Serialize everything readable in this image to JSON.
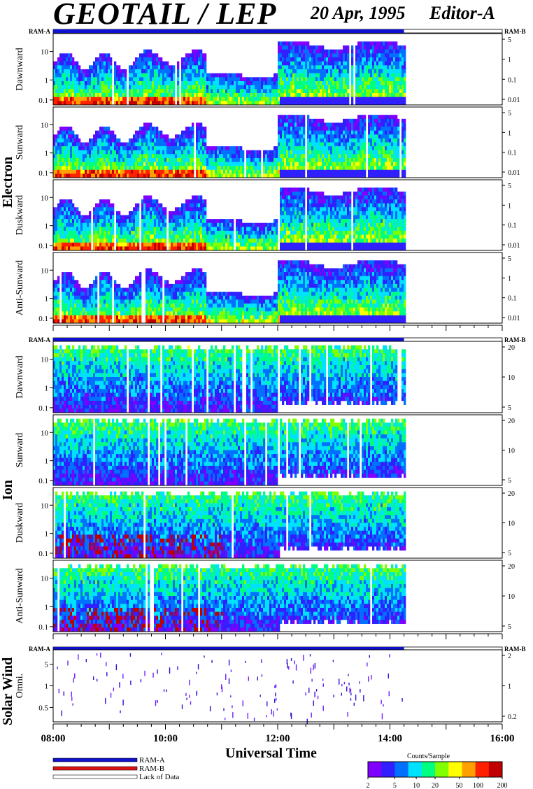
{
  "header": {
    "title": "GEOTAIL / LEP",
    "date": "20 Apr, 1995",
    "editor": "Editor-A"
  },
  "ram_labels": {
    "left": "RAM-A",
    "right": "RAM-B"
  },
  "colors": {
    "ram_a": "#1010d0",
    "ram_b": "#e01010",
    "lack": "#ffffff"
  },
  "chart_data": [
    {
      "type": "heatmap",
      "group": "Electron",
      "panel": "Dawnward",
      "y_left_ticks": [
        "10",
        "1",
        "0.1"
      ],
      "y_right_ticks": [
        "5",
        "1",
        "0.1",
        "0.01"
      ],
      "x": [
        "08:00",
        "16:00"
      ],
      "data_end": "14:15"
    },
    {
      "type": "heatmap",
      "group": "Electron",
      "panel": "Sunward",
      "y_left_ticks": [
        "10",
        "1",
        "0.1"
      ],
      "y_right_ticks": [
        "5",
        "1",
        "0.1",
        "0.01"
      ],
      "x": [
        "08:00",
        "16:00"
      ],
      "data_end": "14:15"
    },
    {
      "type": "heatmap",
      "group": "Electron",
      "panel": "Duskward",
      "y_left_ticks": [
        "10",
        "1",
        "0.1"
      ],
      "y_right_ticks": [
        "5",
        "1",
        "0.1",
        "0.01"
      ],
      "x": [
        "08:00",
        "16:00"
      ],
      "data_end": "14:15"
    },
    {
      "type": "heatmap",
      "group": "Electron",
      "panel": "Anti-Sunward",
      "y_left_ticks": [
        "10",
        "1",
        "0.1"
      ],
      "y_right_ticks": [
        "5",
        "1",
        "0.1",
        "0.01"
      ],
      "x": [
        "08:00",
        "16:00"
      ],
      "data_end": "14:15"
    },
    {
      "type": "heatmap",
      "group": "Ion",
      "panel": "Dawnward",
      "y_left_ticks": [
        "10",
        "1",
        "0.1"
      ],
      "y_right_ticks": [
        "20",
        "10",
        "5"
      ],
      "x": [
        "08:00",
        "16:00"
      ],
      "data_end": "14:15"
    },
    {
      "type": "heatmap",
      "group": "Ion",
      "panel": "Sunward",
      "y_left_ticks": [
        "10",
        "1",
        "0.1"
      ],
      "y_right_ticks": [
        "20",
        "10",
        "5"
      ],
      "x": [
        "08:00",
        "16:00"
      ],
      "data_end": "14:15"
    },
    {
      "type": "heatmap",
      "group": "Ion",
      "panel": "Duskward",
      "y_left_ticks": [
        "10",
        "1",
        "0.1"
      ],
      "y_right_ticks": [
        "20",
        "10",
        "5"
      ],
      "x": [
        "08:00",
        "16:00"
      ],
      "data_end": "14:15"
    },
    {
      "type": "heatmap",
      "group": "Ion",
      "panel": "Anti-Sunward",
      "y_left_ticks": [
        "10",
        "1",
        "0.1"
      ],
      "y_right_ticks": [
        "20",
        "10",
        "5"
      ],
      "x": [
        "08:00",
        "16:00"
      ],
      "data_end": "14:15"
    },
    {
      "type": "heatmap",
      "group": "Solar Wind",
      "panel": "Omni.",
      "y_left_ticks": [
        "5",
        "1",
        "0.5"
      ],
      "y_right_ticks": [
        "2",
        "1",
        "0.2"
      ],
      "x": [
        "08:00",
        "16:00"
      ],
      "data_end": "14:15"
    }
  ],
  "groups": [
    "Electron",
    "Ion",
    "Solar Wind"
  ],
  "x_axis": {
    "label": "Universal Time",
    "ticks": [
      "08:00",
      "10:00",
      "12:00",
      "14:00",
      "16:00"
    ]
  },
  "legend": {
    "ram_a": "RAM-A",
    "ram_b": "RAM-B",
    "lack": "Lack of Data"
  },
  "colorbar": {
    "title": "Counts/Sample",
    "ticks": [
      "2",
      "5",
      "10",
      "20",
      "50",
      "100",
      "200"
    ],
    "colors": [
      "#8000ff",
      "#3020ff",
      "#0070ff",
      "#00e0ff",
      "#00ff80",
      "#80ff00",
      "#ffff00",
      "#ffa000",
      "#ff2000",
      "#c00000"
    ]
  }
}
